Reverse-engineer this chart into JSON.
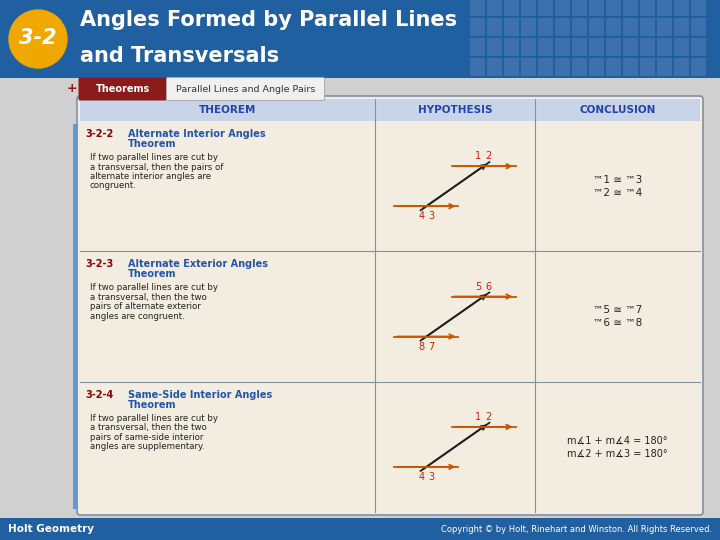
{
  "title_number": "3-2",
  "title_text_line1": "Angles Formed by Parallel Lines",
  "title_text_line2": "and Transversals",
  "header_bg": "#2060a0",
  "header_text_color": "#ffffff",
  "badge_color": "#f0a800",
  "grid_pattern_color": "#5580b8",
  "tab_theorems_bg": "#8b1a1a",
  "tab_theorems_text": "Theorems",
  "tab_subtitle": "Parallel Lines and Angle Pairs",
  "table_header_bg": "#c8d4e8",
  "table_body_bg": "#f2ede0",
  "table_border_color": "#8090a8",
  "col_theorem_header": "THEOREM",
  "col_hypothesis_header": "HYPOTHESIS",
  "col_conclusion_header": "CONCLUSION",
  "theorems": [
    {
      "number": "3-2-2",
      "title": "Alternate Interior Angles\nTheorem",
      "body": "If two parallel lines are cut by\na transversal, then the pairs of\nalternate interior angles are\ncongruent.",
      "conclusion_lines": [
        [
          "™1",
          " ≅ ",
          "™3"
        ],
        [
          "™2",
          " ≅ ",
          "™4"
        ]
      ],
      "hyp_labels": [
        "1",
        "2",
        "4",
        "3"
      ],
      "hyp_type": "interior"
    },
    {
      "number": "3-2-3",
      "title": "Alternate Exterior Angles\nTheorem",
      "body": "If two parallel lines are cut by\na transversal, then the two\npairs of alternate exterior\nangles are congruent.",
      "conclusion_lines": [
        [
          "™5",
          " ≅ ",
          "™7"
        ],
        [
          "™6",
          " ≅ ",
          "™8"
        ]
      ],
      "hyp_labels": [
        "5",
        "6",
        "8",
        "7"
      ],
      "hyp_type": "exterior"
    },
    {
      "number": "3-2-4",
      "title": "Same-Side Interior Angles\nTheorem",
      "body": "If two parallel lines are cut by\na transversal, then the two\npairs of same-side interior\nangles are supplementary.",
      "conclusion_lines": [
        [
          "m∡1",
          " + m∡4",
          " = 180°"
        ],
        [
          "m∡2",
          " + m∡3",
          " = 180°"
        ]
      ],
      "hyp_labels": [
        "1",
        "2",
        "4",
        "3"
      ],
      "hyp_type": "interior"
    }
  ],
  "footer_bg": "#2060a0",
  "footer_left": "Holt Geometry",
  "footer_right": "Copyright © by Holt, Rinehart and Winston. All Rights Reserved.",
  "footer_text_color": "#ffffff",
  "dark_red": "#8b0000",
  "number_color": "#cc2200",
  "title_color": "#2255aa",
  "body_color": "#222222",
  "arr_color": "#cc5500",
  "line_color": "#222222"
}
